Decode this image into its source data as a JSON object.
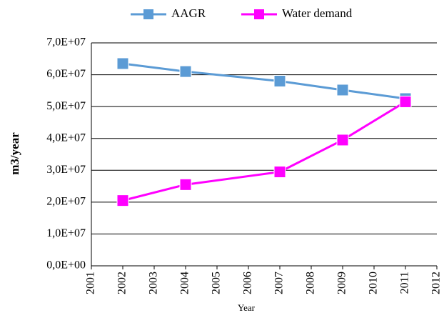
{
  "chart_data": {
    "type": "line",
    "y_label": "m3/year",
    "x_label": "Year",
    "x": [
      2002,
      2004,
      2007,
      2009,
      2011
    ],
    "series": [
      {
        "name": "AAGR",
        "color": "#5b9bd5",
        "values": [
          63500000,
          61000000,
          58000000,
          55200000,
          52500000
        ]
      },
      {
        "name": "Water demand",
        "color": "#ff00ff",
        "values": [
          20500000,
          25500000,
          29500000,
          39500000,
          51500000
        ]
      }
    ],
    "xlim": [
      2001,
      2012
    ],
    "xticks": [
      2001,
      2002,
      2003,
      2004,
      2005,
      2006,
      2007,
      2008,
      2009,
      2010,
      2011,
      2012
    ],
    "ylim": [
      0,
      70000000
    ],
    "yticks": [
      {
        "value": 0,
        "label": "0,0E+00"
      },
      {
        "value": 10000000,
        "label": "1,0E+07"
      },
      {
        "value": 20000000,
        "label": "2,0E+07"
      },
      {
        "value": 30000000,
        "label": "3,0E+07"
      },
      {
        "value": 40000000,
        "label": "4,0E+07"
      },
      {
        "value": 50000000,
        "label": "5,0E+07"
      },
      {
        "value": 60000000,
        "label": "6,0E+07"
      },
      {
        "value": 70000000,
        "label": "7,0E+07"
      }
    ],
    "grid": true,
    "legend": "top"
  }
}
